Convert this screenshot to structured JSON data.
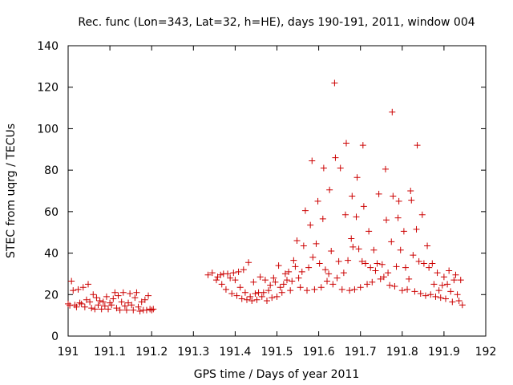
{
  "chart_data": {
    "type": "scatter",
    "title": "Rec. func (Lon=343, Lat=32, h=HE), days 190-191, 2011, window 004",
    "xlabel": "GPS time / Days of year 2011",
    "ylabel": "STEC from uqrg / TECUs",
    "xlim": [
      191,
      192
    ],
    "ylim": [
      0,
      140
    ],
    "xticks": [
      191,
      191.1,
      191.2,
      191.3,
      191.4,
      191.5,
      191.6,
      191.7,
      191.8,
      191.9,
      192
    ],
    "xtick_labels": [
      "191",
      "191.1",
      "191.2",
      "191.3",
      "191.4",
      "191.5",
      "191.6",
      "191.7",
      "191.8",
      "191.9",
      "192"
    ],
    "yticks": [
      0,
      20,
      40,
      60,
      80,
      100,
      120,
      140
    ],
    "ytick_labels": [
      "0",
      "20",
      "40",
      "60",
      "80",
      "100",
      "120",
      "140"
    ],
    "marker": "+",
    "color": "#cc0000",
    "series": [
      {
        "name": "STEC",
        "points": [
          [
            191.0,
            15.5
          ],
          [
            191.004,
            14.8
          ],
          [
            191.008,
            26.5
          ],
          [
            191.012,
            22.0
          ],
          [
            191.016,
            15.0
          ],
          [
            191.02,
            14.0
          ],
          [
            191.024,
            22.5
          ],
          [
            191.028,
            16.0
          ],
          [
            191.032,
            15.5
          ],
          [
            191.036,
            23.5
          ],
          [
            191.04,
            14.0
          ],
          [
            191.044,
            17.5
          ],
          [
            191.048,
            25.0
          ],
          [
            191.052,
            16.5
          ],
          [
            191.056,
            13.5
          ],
          [
            191.06,
            20.0
          ],
          [
            191.064,
            13.0
          ],
          [
            191.068,
            18.5
          ],
          [
            191.072,
            15.0
          ],
          [
            191.076,
            17.0
          ],
          [
            191.08,
            13.0
          ],
          [
            191.084,
            16.5
          ],
          [
            191.088,
            14.5
          ],
          [
            191.092,
            19.0
          ],
          [
            191.096,
            13.0
          ],
          [
            191.1,
            16.0
          ],
          [
            191.104,
            15.0
          ],
          [
            191.108,
            18.0
          ],
          [
            191.112,
            21.0
          ],
          [
            191.116,
            13.5
          ],
          [
            191.12,
            19.5
          ],
          [
            191.124,
            12.5
          ],
          [
            191.128,
            16.5
          ],
          [
            191.132,
            21.0
          ],
          [
            191.136,
            14.5
          ],
          [
            191.14,
            12.5
          ],
          [
            191.144,
            16.0
          ],
          [
            191.148,
            20.5
          ],
          [
            191.152,
            15.0
          ],
          [
            191.156,
            12.5
          ],
          [
            191.16,
            18.5
          ],
          [
            191.164,
            21.0
          ],
          [
            191.168,
            14.0
          ],
          [
            191.172,
            12.0
          ],
          [
            191.176,
            16.5
          ],
          [
            191.18,
            12.5
          ],
          [
            191.184,
            17.5
          ],
          [
            191.188,
            12.5
          ],
          [
            191.192,
            19.5
          ],
          [
            191.196,
            13.0
          ],
          [
            191.2,
            12.5
          ],
          [
            191.204,
            13.0
          ],
          [
            191.335,
            29.5
          ],
          [
            191.345,
            30.5
          ],
          [
            191.355,
            27.0
          ],
          [
            191.358,
            28.5
          ],
          [
            191.365,
            29.5
          ],
          [
            191.368,
            25.0
          ],
          [
            191.372,
            30.0
          ],
          [
            191.378,
            22.5
          ],
          [
            191.382,
            30.0
          ],
          [
            191.388,
            28.0
          ],
          [
            191.392,
            20.5
          ],
          [
            191.396,
            30.5
          ],
          [
            191.4,
            27.0
          ],
          [
            191.404,
            19.5
          ],
          [
            191.408,
            31.0
          ],
          [
            191.412,
            23.5
          ],
          [
            191.416,
            18.0
          ],
          [
            191.42,
            32.0
          ],
          [
            191.424,
            21.0
          ],
          [
            191.428,
            17.5
          ],
          [
            191.432,
            35.5
          ],
          [
            191.436,
            19.0
          ],
          [
            191.44,
            17.0
          ],
          [
            191.444,
            26.0
          ],
          [
            191.448,
            20.5
          ],
          [
            191.452,
            17.5
          ],
          [
            191.456,
            21.0
          ],
          [
            191.46,
            28.5
          ],
          [
            191.464,
            19.0
          ],
          [
            191.468,
            21.0
          ],
          [
            191.472,
            27.0
          ],
          [
            191.476,
            17.0
          ],
          [
            191.48,
            22.0
          ],
          [
            191.484,
            24.5
          ],
          [
            191.488,
            18.5
          ],
          [
            191.492,
            28.0
          ],
          [
            191.496,
            26.0
          ],
          [
            191.5,
            19.0
          ],
          [
            191.504,
            34.0
          ],
          [
            191.508,
            23.5
          ],
          [
            191.512,
            21.0
          ],
          [
            191.516,
            25.0
          ],
          [
            191.52,
            30.0
          ],
          [
            191.524,
            27.0
          ],
          [
            191.528,
            31.0
          ],
          [
            191.532,
            22.0
          ],
          [
            191.536,
            26.5
          ],
          [
            191.54,
            36.5
          ],
          [
            191.544,
            33.5
          ],
          [
            191.548,
            46.0
          ],
          [
            191.552,
            28.0
          ],
          [
            191.556,
            23.5
          ],
          [
            191.56,
            31.0
          ],
          [
            191.564,
            43.5
          ],
          [
            191.568,
            60.5
          ],
          [
            191.572,
            22.0
          ],
          [
            191.576,
            33.0
          ],
          [
            191.58,
            53.5
          ],
          [
            191.584,
            84.5
          ],
          [
            191.586,
            38.0
          ],
          [
            191.59,
            22.5
          ],
          [
            191.594,
            44.5
          ],
          [
            191.598,
            65.0
          ],
          [
            191.602,
            35.0
          ],
          [
            191.606,
            23.5
          ],
          [
            191.61,
            56.5
          ],
          [
            191.612,
            81.0
          ],
          [
            191.616,
            32.0
          ],
          [
            191.62,
            26.5
          ],
          [
            191.624,
            30.0
          ],
          [
            191.626,
            70.5
          ],
          [
            191.63,
            41.0
          ],
          [
            191.634,
            25.0
          ],
          [
            191.638,
            122.0
          ],
          [
            191.64,
            86.0
          ],
          [
            191.644,
            28.0
          ],
          [
            191.648,
            36.0
          ],
          [
            191.652,
            81.0
          ],
          [
            191.656,
            22.5
          ],
          [
            191.66,
            30.5
          ],
          [
            191.664,
            58.5
          ],
          [
            191.666,
            93.0
          ],
          [
            191.67,
            36.5
          ],
          [
            191.674,
            22.0
          ],
          [
            191.678,
            47.0
          ],
          [
            191.68,
            67.5
          ],
          [
            191.682,
            43.0
          ],
          [
            191.686,
            22.5
          ],
          [
            191.69,
            57.5
          ],
          [
            191.692,
            76.5
          ],
          [
            191.696,
            42.0
          ],
          [
            191.7,
            23.5
          ],
          [
            191.704,
            36.0
          ],
          [
            191.706,
            92.0
          ],
          [
            191.708,
            62.5
          ],
          [
            191.712,
            35.0
          ],
          [
            191.716,
            25.0
          ],
          [
            191.72,
            50.5
          ],
          [
            191.724,
            33.0
          ],
          [
            191.728,
            26.0
          ],
          [
            191.732,
            41.5
          ],
          [
            191.736,
            31.5
          ],
          [
            191.74,
            35.0
          ],
          [
            191.744,
            68.5
          ],
          [
            191.748,
            27.5
          ],
          [
            191.752,
            34.5
          ],
          [
            191.756,
            28.5
          ],
          [
            191.76,
            80.5
          ],
          [
            191.762,
            56.0
          ],
          [
            191.766,
            30.5
          ],
          [
            191.77,
            24.5
          ],
          [
            191.774,
            45.5
          ],
          [
            191.776,
            108.0
          ],
          [
            191.778,
            67.5
          ],
          [
            191.782,
            24.0
          ],
          [
            191.786,
            33.5
          ],
          [
            191.79,
            57.0
          ],
          [
            191.792,
            65.0
          ],
          [
            191.796,
            41.5
          ],
          [
            191.8,
            22.0
          ],
          [
            191.804,
            50.5
          ],
          [
            191.808,
            33.0
          ],
          [
            191.812,
            22.5
          ],
          [
            191.816,
            27.5
          ],
          [
            191.82,
            70.0
          ],
          [
            191.822,
            65.5
          ],
          [
            191.826,
            39.0
          ],
          [
            191.83,
            21.5
          ],
          [
            191.834,
            51.5
          ],
          [
            191.836,
            92.0
          ],
          [
            191.84,
            36.0
          ],
          [
            191.844,
            20.5
          ],
          [
            191.848,
            58.5
          ],
          [
            191.852,
            35.0
          ],
          [
            191.856,
            19.5
          ],
          [
            191.86,
            43.5
          ],
          [
            191.864,
            33.0
          ],
          [
            191.868,
            20.0
          ],
          [
            191.872,
            35.0
          ],
          [
            191.876,
            25.0
          ],
          [
            191.88,
            19.0
          ],
          [
            191.884,
            30.5
          ],
          [
            191.888,
            22.0
          ],
          [
            191.892,
            18.5
          ],
          [
            191.896,
            24.5
          ],
          [
            191.9,
            28.5
          ],
          [
            191.904,
            18.0
          ],
          [
            191.908,
            25.0
          ],
          [
            191.912,
            31.5
          ],
          [
            191.916,
            21.5
          ],
          [
            191.92,
            16.5
          ],
          [
            191.924,
            27.0
          ],
          [
            191.928,
            29.5
          ],
          [
            191.932,
            20.0
          ],
          [
            191.936,
            17.0
          ],
          [
            191.94,
            27.0
          ],
          [
            191.944,
            15.0
          ]
        ]
      }
    ]
  }
}
